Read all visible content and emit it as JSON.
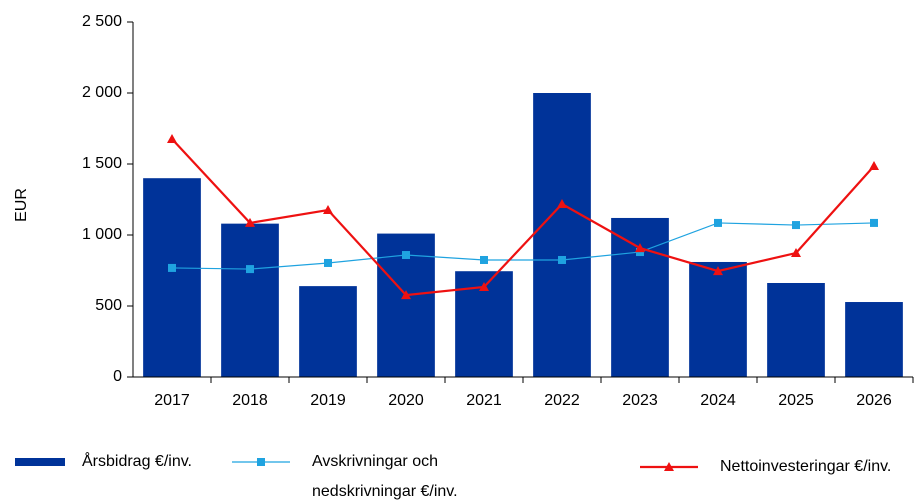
{
  "chart_data": {
    "type": "bar_line",
    "ylabel": "EUR",
    "categories": [
      "2017",
      "2018",
      "2019",
      "2020",
      "2021",
      "2022",
      "2023",
      "2024",
      "2025",
      "2026"
    ],
    "series": [
      {
        "name": "Årsbidrag €/inv.",
        "type": "bar",
        "color": "#003399",
        "values": [
          1400,
          1080,
          640,
          1010,
          745,
          2000,
          1120,
          810,
          662,
          528
        ]
      },
      {
        "name": "Avskrivningar och nedskrivningar €/inv.",
        "type": "line",
        "marker": "square",
        "color": "#1fa3e0",
        "values": [
          768,
          760,
          803,
          859,
          824,
          824,
          880,
          1085,
          1070,
          1085
        ]
      },
      {
        "name": "Nettoinvesteringar €/inv.",
        "type": "line",
        "marker": "triangle",
        "color": "#ee1111",
        "values": [
          1676,
          1085,
          1176,
          577,
          634,
          1218,
          908,
          746,
          873,
          1486
        ]
      }
    ],
    "ylim": [
      0,
      2500
    ],
    "yticks": [
      0,
      500,
      {
        "value": 1000,
        "label": "1 000"
      },
      {
        "value": 1500,
        "label": "1 500"
      },
      {
        "value": 2000,
        "label": "2 000"
      },
      {
        "value": 2500,
        "label": "2 500"
      }
    ],
    "grid": false
  }
}
